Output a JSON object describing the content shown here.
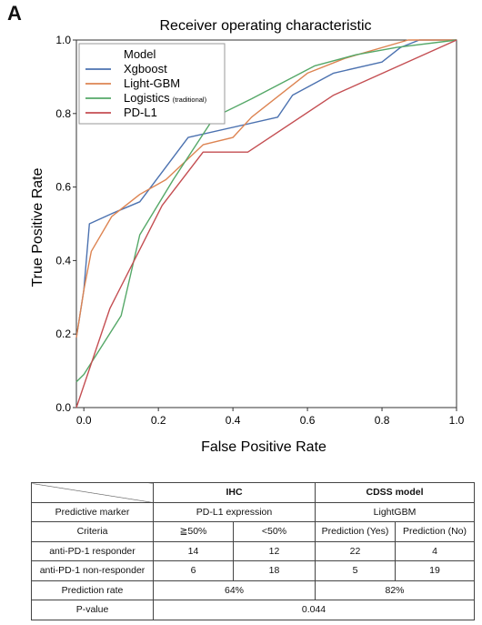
{
  "panel_label": "A",
  "chart_data": {
    "type": "line",
    "title": "Receiver operating characteristic",
    "xlabel": "False Positive Rate",
    "ylabel": "True Positive Rate",
    "xlim": [
      -0.02,
      1.0
    ],
    "ylim": [
      0.0,
      1.0
    ],
    "xticks": [
      "0.0",
      "0.2",
      "0.4",
      "0.6",
      "0.8",
      "1.0"
    ],
    "yticks": [
      "0.0",
      "0.2",
      "0.4",
      "0.6",
      "0.8",
      "1.0"
    ],
    "grid": false,
    "legend": {
      "title": "Model",
      "placement": "top-left"
    },
    "series": [
      {
        "name": "Xgboost",
        "note": "",
        "color": "#4c72b0",
        "points": [
          [
            -0.02,
            0.19
          ],
          [
            0.0,
            0.32
          ],
          [
            0.015,
            0.5
          ],
          [
            0.08,
            0.53
          ],
          [
            0.15,
            0.56
          ],
          [
            0.28,
            0.735
          ],
          [
            0.52,
            0.79
          ],
          [
            0.56,
            0.85
          ],
          [
            0.67,
            0.91
          ],
          [
            0.8,
            0.94
          ],
          [
            0.85,
            0.98
          ],
          [
            0.9,
            1.0
          ],
          [
            1.0,
            1.0
          ]
        ]
      },
      {
        "name": "Light-GBM",
        "note": "",
        "color": "#dd8452",
        "points": [
          [
            -0.02,
            0.19
          ],
          [
            0.0,
            0.32
          ],
          [
            0.02,
            0.425
          ],
          [
            0.075,
            0.52
          ],
          [
            0.15,
            0.58
          ],
          [
            0.22,
            0.62
          ],
          [
            0.32,
            0.715
          ],
          [
            0.4,
            0.735
          ],
          [
            0.45,
            0.79
          ],
          [
            0.6,
            0.91
          ],
          [
            0.7,
            0.95
          ],
          [
            0.87,
            1.0
          ],
          [
            1.0,
            1.0
          ]
        ]
      },
      {
        "name": "Logistics",
        "note": "(traditional)",
        "color": "#55a868",
        "points": [
          [
            -0.02,
            0.07
          ],
          [
            0.0,
            0.09
          ],
          [
            0.1,
            0.25
          ],
          [
            0.15,
            0.47
          ],
          [
            0.24,
            0.62
          ],
          [
            0.35,
            0.79
          ],
          [
            0.45,
            0.84
          ],
          [
            0.62,
            0.93
          ],
          [
            0.73,
            0.96
          ],
          [
            0.84,
            0.98
          ],
          [
            1.0,
            1.0
          ]
        ]
      },
      {
        "name": "PD-L1",
        "note": "",
        "color": "#c44e52",
        "points": [
          [
            -0.02,
            0.0
          ],
          [
            0.07,
            0.27
          ],
          [
            0.21,
            0.55
          ],
          [
            0.32,
            0.695
          ],
          [
            0.44,
            0.695
          ],
          [
            0.67,
            0.85
          ],
          [
            1.0,
            1.0
          ]
        ]
      }
    ]
  },
  "table": {
    "header": {
      "ihc": "IHC",
      "cdss": "CDSS model"
    },
    "rows": [
      {
        "label": "Predictive marker",
        "ihc": "PD-L1 expression",
        "cdss": "LightGBM"
      },
      {
        "label": "Criteria",
        "c1": "≧50%",
        "c2": "<50%",
        "c3": "Prediction (Yes)",
        "c4": "Prediction (No)"
      },
      {
        "label": "anti-PD-1 responder",
        "c1": "14",
        "c2": "12",
        "c3": "22",
        "c4": "4"
      },
      {
        "label": "anti-PD-1 non-responder",
        "c1": "6",
        "c2": "18",
        "c3": "5",
        "c4": "19"
      },
      {
        "label": "Prediction rate",
        "ihc": "64%",
        "cdss": "82%"
      },
      {
        "label": "P-value",
        "all": "0.044"
      }
    ]
  }
}
